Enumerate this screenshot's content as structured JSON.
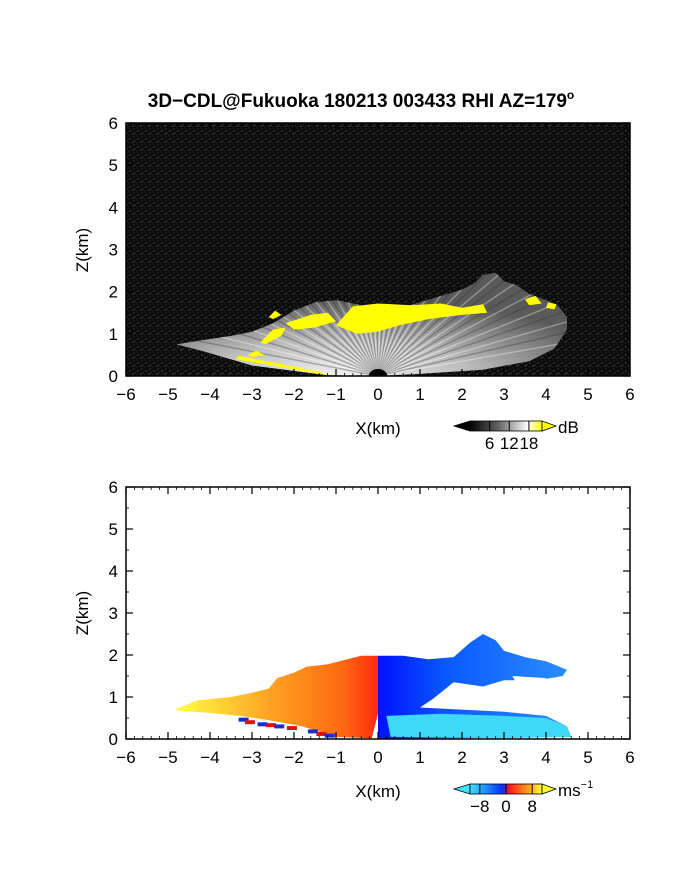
{
  "figure": {
    "title_main": "3D−CDL@Fukuoka 180213 003433 RHI AZ=179",
    "title_degree": "o"
  },
  "chart_data": [
    {
      "type": "heatmap",
      "panel": "top",
      "quantity": "reflectivity / SNR",
      "xlabel": "X(km)",
      "ylabel": "Z(km)",
      "xlim": [
        -6,
        6
      ],
      "ylim": [
        0,
        6
      ],
      "xticks": [
        -6,
        -5,
        -4,
        -3,
        -2,
        -1,
        0,
        1,
        2,
        3,
        4,
        5,
        6
      ],
      "yticks": [
        0,
        1,
        2,
        3,
        4,
        5,
        6
      ],
      "background": "#0a0a0a",
      "colorbar": {
        "unit": "dB",
        "ticks": [
          6,
          12,
          18
        ],
        "range": [
          0,
          22
        ],
        "colors": [
          "#000000",
          "#555555",
          "#aaaaaa",
          "#ffffff",
          "#ffff00"
        ]
      },
      "echo_boundary_upper": [
        [
          -4.8,
          0.75
        ],
        [
          -4.2,
          0.85
        ],
        [
          -3.5,
          0.95
        ],
        [
          -3.0,
          1.05
        ],
        [
          -2.5,
          1.25
        ],
        [
          -2.0,
          1.55
        ],
        [
          -1.5,
          1.75
        ],
        [
          -1.0,
          1.8
        ],
        [
          -0.5,
          1.7
        ],
        [
          0.0,
          1.55
        ],
        [
          0.5,
          1.6
        ],
        [
          1.0,
          1.75
        ],
        [
          1.5,
          1.9
        ],
        [
          2.0,
          2.05
        ],
        [
          2.3,
          2.2
        ],
        [
          2.5,
          2.4
        ],
        [
          2.8,
          2.45
        ],
        [
          3.0,
          2.25
        ],
        [
          3.3,
          2.15
        ],
        [
          3.6,
          1.95
        ],
        [
          4.0,
          1.8
        ],
        [
          4.3,
          1.65
        ],
        [
          4.5,
          1.4
        ]
      ],
      "echo_boundary_lower": [
        [
          4.5,
          1.4
        ],
        [
          4.5,
          1.1
        ],
        [
          4.2,
          0.65
        ],
        [
          3.6,
          0.35
        ],
        [
          2.5,
          0.15
        ],
        [
          1.0,
          0.05
        ],
        [
          0.0,
          0.0
        ],
        [
          -1.2,
          0.02
        ],
        [
          -3.0,
          0.25
        ],
        [
          -4.2,
          0.6
        ],
        [
          -4.8,
          0.75
        ]
      ],
      "high_signal_regions": [
        [
          [
            -1.0,
            1.2
          ],
          [
            -0.6,
            1.65
          ],
          [
            0.0,
            1.72
          ],
          [
            0.8,
            1.68
          ],
          [
            1.5,
            1.72
          ],
          [
            2.0,
            1.62
          ],
          [
            2.5,
            1.7
          ],
          [
            2.6,
            1.5
          ],
          [
            2.0,
            1.45
          ],
          [
            1.2,
            1.35
          ],
          [
            0.5,
            1.2
          ],
          [
            0.0,
            1.05
          ],
          [
            -0.5,
            1.0
          ]
        ],
        [
          [
            -2.2,
            1.25
          ],
          [
            -1.6,
            1.45
          ],
          [
            -1.2,
            1.5
          ],
          [
            -1.0,
            1.3
          ],
          [
            -1.5,
            1.15
          ],
          [
            -2.0,
            1.1
          ]
        ],
        [
          [
            -2.8,
            0.8
          ],
          [
            -2.5,
            1.1
          ],
          [
            -2.2,
            1.15
          ],
          [
            -2.3,
            0.95
          ],
          [
            -2.7,
            0.75
          ]
        ],
        [
          [
            -3.1,
            0.5
          ],
          [
            -2.9,
            0.6
          ],
          [
            -2.7,
            0.5
          ],
          [
            -3.0,
            0.45
          ]
        ],
        [
          [
            -3.4,
            0.4
          ],
          [
            -1.2,
            0.02
          ],
          [
            -1.4,
            0.1
          ],
          [
            -3.3,
            0.48
          ]
        ],
        [
          [
            -2.6,
            1.4
          ],
          [
            -2.45,
            1.55
          ],
          [
            -2.3,
            1.45
          ],
          [
            -2.5,
            1.35
          ]
        ],
        [
          [
            3.5,
            1.82
          ],
          [
            3.75,
            1.9
          ],
          [
            3.9,
            1.72
          ],
          [
            3.6,
            1.68
          ]
        ],
        [
          [
            4.05,
            1.75
          ],
          [
            4.25,
            1.7
          ],
          [
            4.2,
            1.58
          ],
          [
            4.0,
            1.62
          ]
        ]
      ]
    },
    {
      "type": "heatmap",
      "panel": "bottom",
      "quantity": "Doppler velocity",
      "xlabel": "X(km)",
      "ylabel": "Z(km)",
      "xlim": [
        -6,
        6
      ],
      "ylim": [
        0,
        6
      ],
      "xticks": [
        -6,
        -5,
        -4,
        -3,
        -2,
        -1,
        0,
        1,
        2,
        3,
        4,
        5,
        6
      ],
      "yticks": [
        0,
        1,
        2,
        3,
        4,
        5,
        6
      ],
      "background": "#ffffff",
      "colorbar": {
        "unit": "ms",
        "unit_exp": "−1",
        "ticks": [
          "−8",
          "0",
          "8"
        ],
        "tick_values": [
          -8,
          0,
          8
        ],
        "range": [
          -11,
          11
        ],
        "colors": [
          "#40e0ff",
          "#0044ff",
          "#ff2020",
          "#ffa020",
          "#ffff30"
        ]
      },
      "regions": [
        {
          "velocity_range": [
            2,
            8
          ],
          "polygon": [
            [
              -4.8,
              0.72
            ],
            [
              -4.3,
              0.92
            ],
            [
              -3.5,
              1.0
            ],
            [
              -3.0,
              1.1
            ],
            [
              -2.6,
              1.2
            ],
            [
              -2.4,
              1.45
            ],
            [
              -2.0,
              1.58
            ],
            [
              -1.7,
              1.72
            ],
            [
              -1.2,
              1.78
            ],
            [
              -0.8,
              1.88
            ],
            [
              -0.4,
              1.98
            ],
            [
              0.0,
              1.98
            ],
            [
              0.0,
              0.6
            ],
            [
              -0.15,
              0.02
            ],
            [
              -1.0,
              0.05
            ],
            [
              -1.8,
              0.3
            ],
            [
              -2.6,
              0.45
            ],
            [
              -3.3,
              0.55
            ],
            [
              -4.0,
              0.62
            ],
            [
              -4.8,
              0.68
            ]
          ]
        },
        {
          "velocity_range": [
            -8,
            -1
          ],
          "polygon": [
            [
              0.0,
              1.98
            ],
            [
              0.6,
              1.98
            ],
            [
              1.2,
              1.9
            ],
            [
              1.8,
              1.95
            ],
            [
              2.2,
              2.3
            ],
            [
              2.5,
              2.5
            ],
            [
              2.8,
              2.35
            ],
            [
              3.0,
              2.1
            ],
            [
              3.5,
              1.95
            ],
            [
              4.0,
              1.85
            ],
            [
              4.5,
              1.65
            ],
            [
              4.4,
              1.5
            ],
            [
              3.8,
              1.4
            ],
            [
              3.0,
              1.4
            ],
            [
              2.5,
              1.25
            ],
            [
              1.8,
              1.35
            ],
            [
              1.3,
              0.95
            ],
            [
              1.0,
              0.75
            ],
            [
              2.0,
              0.7
            ],
            [
              3.0,
              0.65
            ],
            [
              4.0,
              0.55
            ],
            [
              4.5,
              0.3
            ],
            [
              4.6,
              0.05
            ],
            [
              0.0,
              0.0
            ]
          ]
        },
        {
          "velocity_range": [
            -11,
            -8
          ],
          "polygon": [
            [
              0.2,
              0.55
            ],
            [
              1.5,
              0.6
            ],
            [
              3.0,
              0.55
            ],
            [
              4.0,
              0.5
            ],
            [
              4.5,
              0.3
            ],
            [
              4.6,
              0.05
            ],
            [
              3.0,
              0.02
            ],
            [
              0.3,
              0.05
            ]
          ]
        }
      ],
      "speckles": [
        {
          "x": -3.2,
          "z": 0.46,
          "v": -6
        },
        {
          "x": -3.05,
          "z": 0.4,
          "v": 6
        },
        {
          "x": -2.75,
          "z": 0.35,
          "v": -5
        },
        {
          "x": -2.55,
          "z": 0.33,
          "v": 7
        },
        {
          "x": -2.35,
          "z": 0.3,
          "v": -6
        },
        {
          "x": -2.05,
          "z": 0.26,
          "v": 5
        },
        {
          "x": -1.55,
          "z": 0.18,
          "v": -7
        },
        {
          "x": -1.35,
          "z": 0.12,
          "v": 6
        },
        {
          "x": -1.15,
          "z": 0.08,
          "v": -5
        }
      ]
    }
  ]
}
